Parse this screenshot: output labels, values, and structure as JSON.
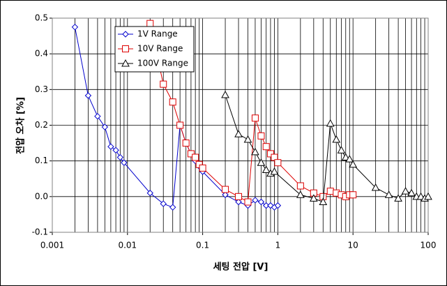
{
  "chart_data": {
    "type": "line",
    "xlabel": "세팅 전압 [V]",
    "ylabel": "전압 오차 [%]",
    "xscale": "log",
    "xlim": [
      0.001,
      100
    ],
    "xticks": [
      0.001,
      0.01,
      0.1,
      1,
      10,
      100
    ],
    "ylim": [
      -0.1,
      0.5
    ],
    "yticks": [
      -0.1,
      {
        "value": 0,
        "label": "0.0"
      },
      0.1,
      0.2,
      0.3,
      0.4,
      0.5
    ],
    "grid": true,
    "legend": "upper left",
    "series": [
      {
        "name": "1V Range",
        "color": "#0000cc",
        "marker": "diamond",
        "x": [
          0.002,
          0.003,
          0.004,
          0.005,
          0.006,
          0.007,
          0.008,
          0.009,
          0.02,
          0.03,
          0.04,
          0.05,
          0.06,
          0.07,
          0.08,
          0.09,
          0.1,
          0.2,
          0.3,
          0.4,
          0.5,
          0.6,
          0.7,
          0.8,
          0.9,
          1
        ],
        "values": [
          0.475,
          0.283,
          0.225,
          0.195,
          0.14,
          0.13,
          0.11,
          0.095,
          0.01,
          -0.02,
          -0.03,
          0.2,
          0.15,
          0.12,
          0.1,
          0.085,
          0.07,
          0.005,
          -0.015,
          -0.025,
          -0.01,
          -0.015,
          -0.025,
          -0.025,
          -0.03,
          -0.025
        ]
      },
      {
        "name": "10V Range",
        "color": "#dd0000",
        "marker": "square",
        "x": [
          0.02,
          0.03,
          0.04,
          0.05,
          0.06,
          0.07,
          0.08,
          0.09,
          0.1,
          0.2,
          0.3,
          0.4,
          0.5,
          0.6,
          0.7,
          0.8,
          0.9,
          1,
          2,
          3,
          4,
          5,
          6,
          7,
          8,
          9,
          10
        ],
        "values": [
          0.485,
          0.315,
          0.265,
          0.2,
          0.15,
          0.12,
          0.11,
          0.09,
          0.08,
          0.02,
          0,
          -0.015,
          0.22,
          0.17,
          0.14,
          0.12,
          0.11,
          0.095,
          0.03,
          0.01,
          0,
          0.015,
          0.01,
          0.005,
          0,
          0.005,
          0.005
        ]
      },
      {
        "name": "100V Range",
        "color": "#000000",
        "marker": "triangle",
        "x": [
          0.2,
          0.3,
          0.4,
          0.5,
          0.6,
          0.7,
          0.8,
          0.9,
          2,
          3,
          4,
          5,
          6,
          7,
          8,
          9,
          10,
          20,
          30,
          40,
          50,
          60,
          70,
          80,
          90,
          100
        ],
        "values": [
          0.285,
          0.175,
          0.16,
          0.125,
          0.095,
          0.075,
          0.065,
          0.07,
          0.005,
          -0.005,
          -0.015,
          0.205,
          0.16,
          0.13,
          0.11,
          0.105,
          0.09,
          0.025,
          0.005,
          -0.005,
          0.015,
          0.01,
          0,
          0,
          -0.005,
          0
        ]
      }
    ]
  }
}
